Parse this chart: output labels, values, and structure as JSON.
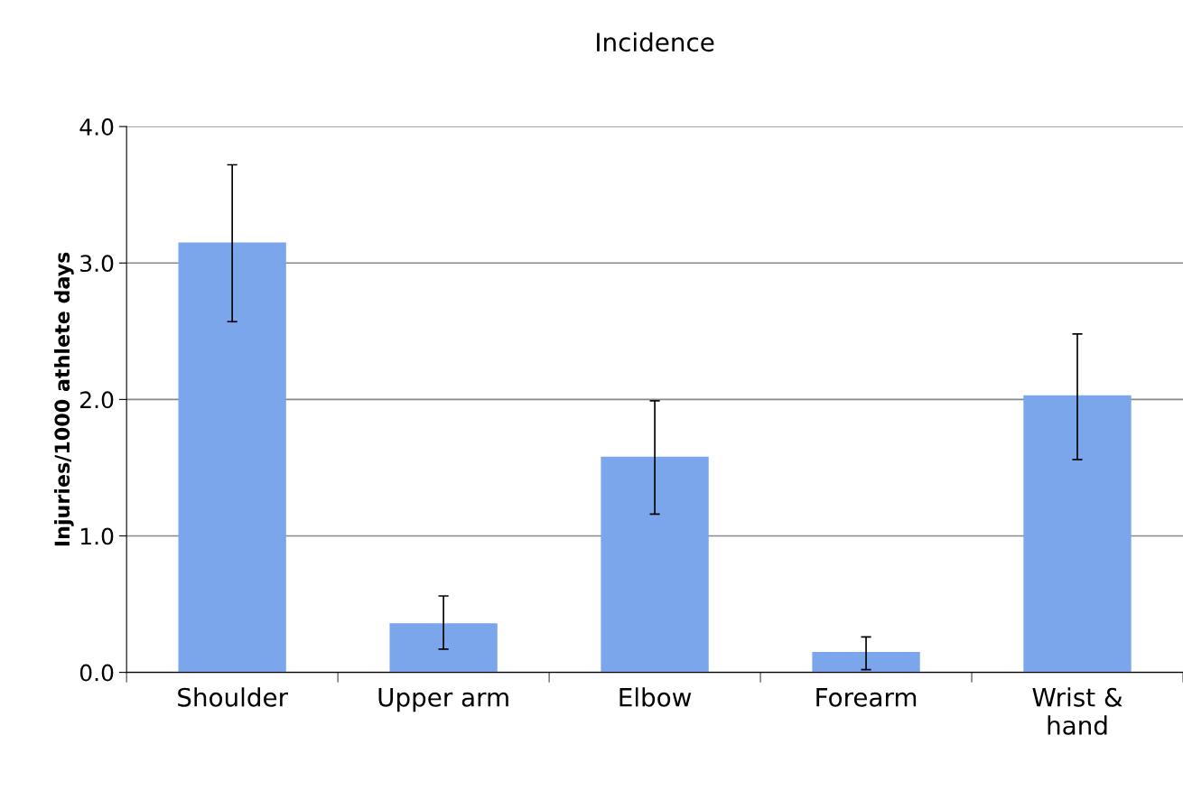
{
  "chart_data": {
    "type": "bar",
    "title": "Incidence",
    "ylabel": "Injuries/1000 athlete days",
    "categories": [
      "Shoulder",
      "Upper arm",
      "Elbow",
      "Forearm",
      "Wrist &\nhand"
    ],
    "values": [
      3.15,
      0.36,
      1.58,
      0.15,
      2.03
    ],
    "errors": [
      [
        2.57,
        3.72
      ],
      [
        0.17,
        0.56
      ],
      [
        1.16,
        1.99
      ],
      [
        0.02,
        0.26
      ],
      [
        1.56,
        2.48
      ]
    ],
    "color": "#7ba6ec",
    "ylim": [
      0,
      4
    ],
    "yticks": [
      {
        "value": 0,
        "label": "0.0"
      },
      {
        "value": 1,
        "label": "1.0"
      },
      {
        "value": 2,
        "label": "2.0"
      },
      {
        "value": 3,
        "label": "3.0"
      },
      {
        "value": 4,
        "label": "4.0"
      }
    ],
    "grid": "y",
    "legend": false
  }
}
